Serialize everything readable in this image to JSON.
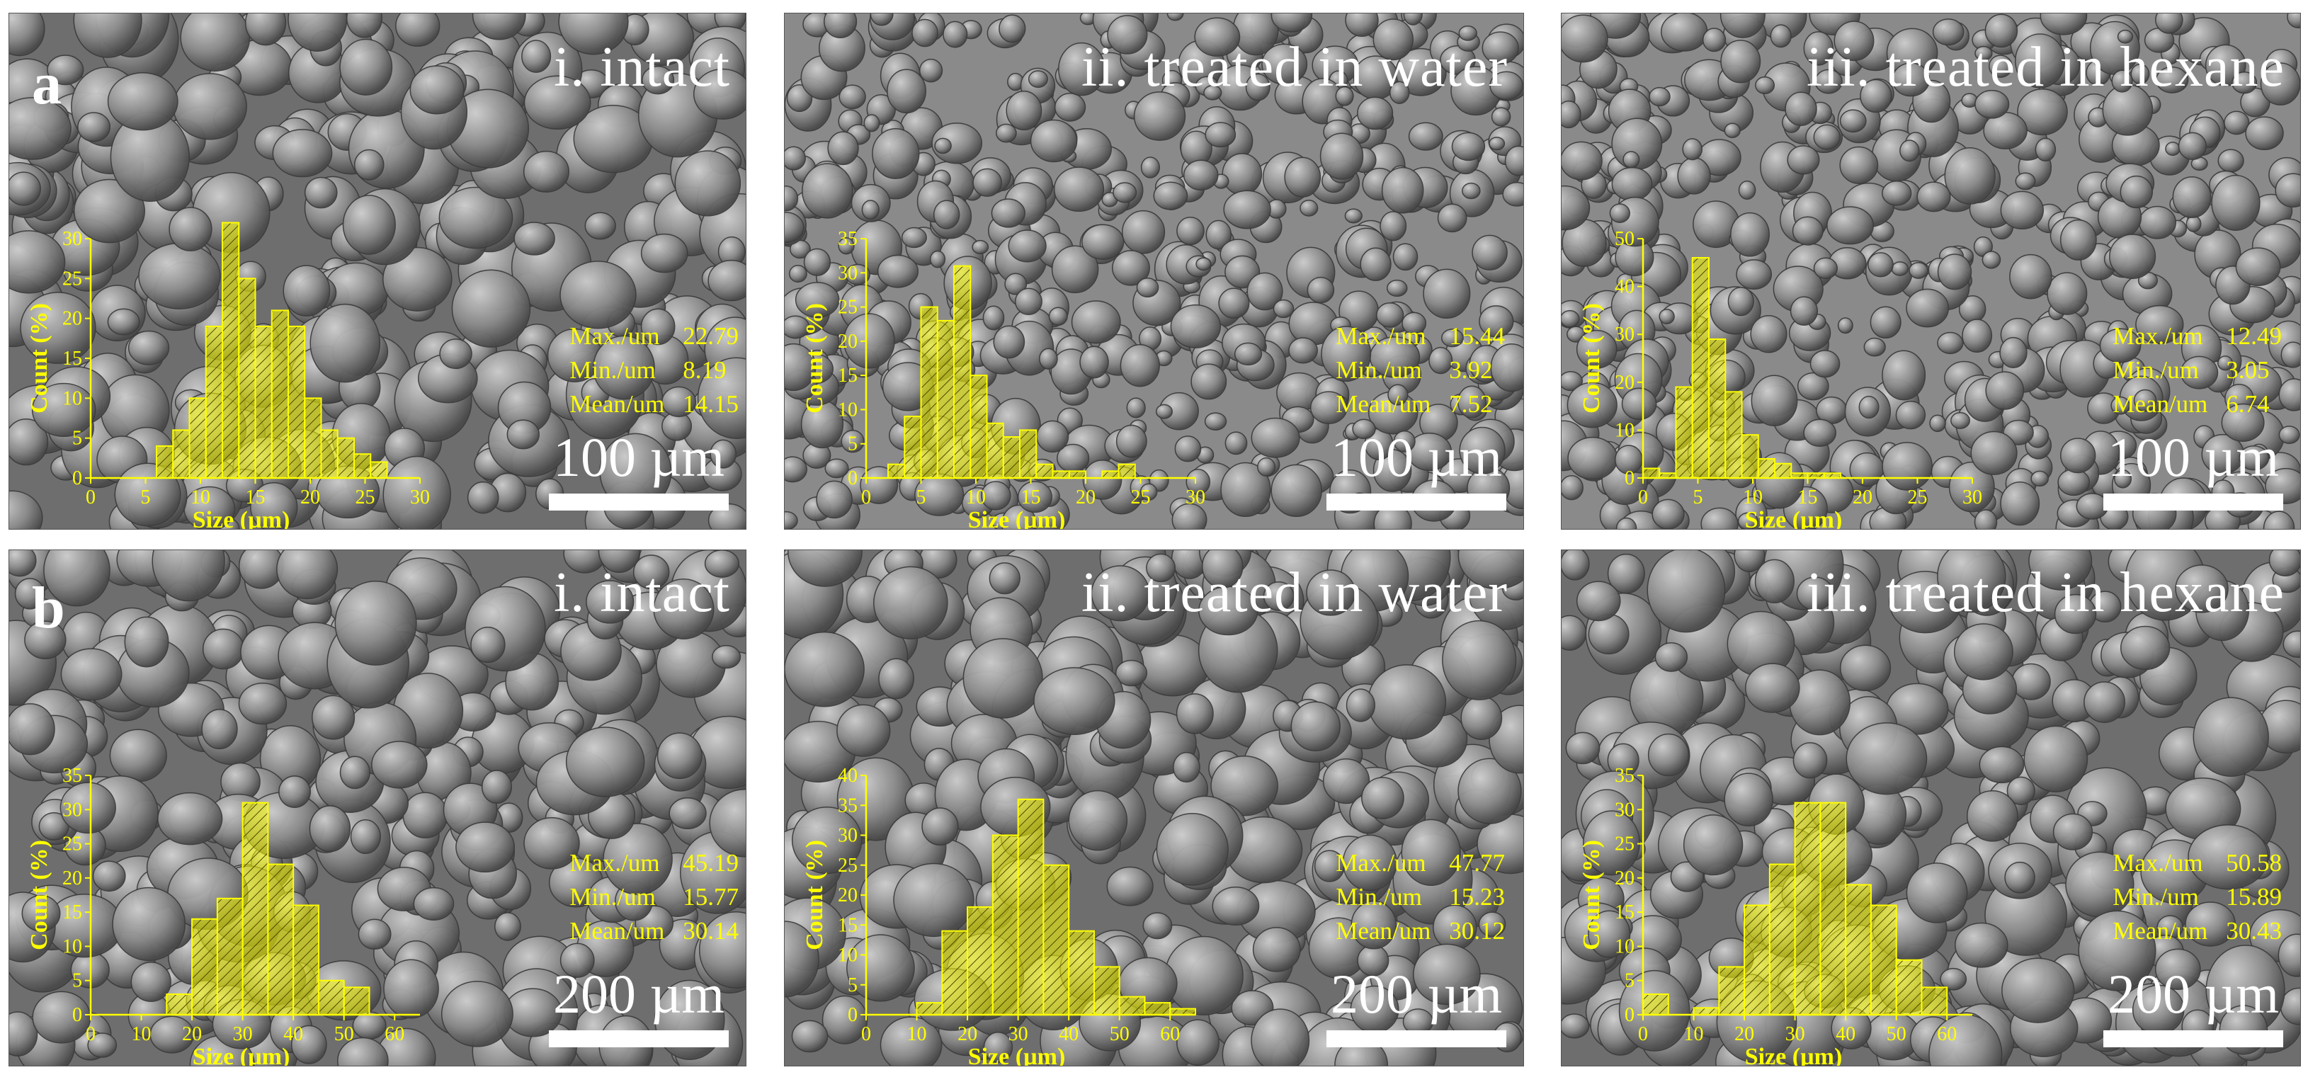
{
  "rows": [
    {
      "letter": "a"
    },
    {
      "letter": "b"
    }
  ],
  "panels": [
    {
      "id": "a1",
      "title": "i. intact",
      "stats": [
        {
          "k": "Max./um",
          "v": "22.79"
        },
        {
          "k": "Min./um",
          "v": "8.19"
        },
        {
          "k": "Mean/um",
          "v": "14.15"
        }
      ],
      "scale_label": "100 µm",
      "chart_data": {
        "type": "bar",
        "xlabel": "Size (µm)",
        "ylabel": "Count (%)",
        "xticks": [
          0,
          5,
          10,
          15,
          20,
          25,
          30
        ],
        "yticks": [
          0,
          5,
          10,
          15,
          20,
          25,
          30
        ],
        "xlim": [
          0,
          30
        ],
        "ylim": [
          0,
          30
        ],
        "bins": [
          [
            6,
            7.5,
            4
          ],
          [
            7.5,
            9,
            6
          ],
          [
            9,
            10.5,
            10
          ],
          [
            10.5,
            12,
            19
          ],
          [
            12,
            13.5,
            32
          ],
          [
            13.5,
            15,
            25
          ],
          [
            15,
            16.5,
            19
          ],
          [
            16.5,
            18,
            21
          ],
          [
            18,
            19.5,
            19
          ],
          [
            19.5,
            21,
            10
          ],
          [
            21,
            22.5,
            6
          ],
          [
            22.5,
            24,
            5
          ],
          [
            24,
            25.5,
            3
          ],
          [
            25.5,
            27,
            2
          ]
        ]
      }
    },
    {
      "id": "a2",
      "title": "ii. treated in water",
      "stats": [
        {
          "k": "Max./um",
          "v": "15.44"
        },
        {
          "k": "Min./um",
          "v": "3.92"
        },
        {
          "k": "Mean/um",
          "v": "7.52"
        }
      ],
      "scale_label": "100 µm",
      "chart_data": {
        "type": "bar",
        "xlabel": "Size (µm)",
        "ylabel": "Count (%)",
        "xticks": [
          0,
          5,
          10,
          15,
          20,
          25,
          30
        ],
        "yticks": [
          0,
          5,
          10,
          15,
          20,
          25,
          30,
          35
        ],
        "xlim": [
          0,
          30
        ],
        "ylim": [
          0,
          35
        ],
        "bins": [
          [
            2,
            3.5,
            2
          ],
          [
            3.5,
            5,
            9
          ],
          [
            5,
            6.5,
            25
          ],
          [
            6.5,
            8,
            23
          ],
          [
            8,
            9.5,
            31
          ],
          [
            9.5,
            11,
            15
          ],
          [
            11,
            12.5,
            8
          ],
          [
            12.5,
            14,
            6
          ],
          [
            14,
            15.5,
            7
          ],
          [
            15.5,
            17,
            2
          ],
          [
            17,
            18.5,
            1
          ],
          [
            18.5,
            20,
            1
          ],
          [
            20,
            21.5,
            0
          ],
          [
            21.5,
            23,
            1
          ],
          [
            23,
            24.5,
            2
          ]
        ]
      }
    },
    {
      "id": "a3",
      "title": "iii. treated in hexane",
      "stats": [
        {
          "k": "Max./um",
          "v": "12.49"
        },
        {
          "k": "Min./um",
          "v": "3.05"
        },
        {
          "k": "Mean/um",
          "v": "6.74"
        }
      ],
      "scale_label": "100 µm",
      "chart_data": {
        "type": "bar",
        "xlabel": "Size (µm)",
        "ylabel": "Count (%)",
        "xticks": [
          0,
          5,
          10,
          15,
          20,
          25,
          30
        ],
        "yticks": [
          0,
          10,
          20,
          30,
          40,
          50
        ],
        "xlim": [
          0,
          30
        ],
        "ylim": [
          0,
          50
        ],
        "bins": [
          [
            0,
            1.5,
            2
          ],
          [
            1.5,
            3,
            1
          ],
          [
            3,
            4.5,
            19
          ],
          [
            4.5,
            6,
            46
          ],
          [
            6,
            7.5,
            29
          ],
          [
            7.5,
            9,
            18
          ],
          [
            9,
            10.5,
            9
          ],
          [
            10.5,
            12,
            4
          ],
          [
            12,
            13.5,
            3
          ],
          [
            13.5,
            15,
            1
          ],
          [
            15,
            16.5,
            1
          ],
          [
            16.5,
            18,
            1
          ]
        ]
      }
    },
    {
      "id": "b1",
      "title": "i. intact",
      "stats": [
        {
          "k": "Max./um",
          "v": "45.19"
        },
        {
          "k": "Min./um",
          "v": "15.77"
        },
        {
          "k": "Mean/um",
          "v": "30.14"
        }
      ],
      "scale_label": "200 µm",
      "chart_data": {
        "type": "bar",
        "xlabel": "Size (µm)",
        "ylabel": "Count (%)",
        "xticks": [
          0,
          10,
          20,
          30,
          40,
          50,
          60
        ],
        "yticks": [
          0,
          5,
          10,
          15,
          20,
          25,
          30,
          35
        ],
        "xlim": [
          0,
          65
        ],
        "ylim": [
          0,
          35
        ],
        "bins": [
          [
            15,
            20,
            3
          ],
          [
            20,
            25,
            14
          ],
          [
            25,
            30,
            17
          ],
          [
            30,
            35,
            31
          ],
          [
            35,
            40,
            22
          ],
          [
            40,
            45,
            16
          ],
          [
            45,
            50,
            5
          ],
          [
            50,
            55,
            4
          ]
        ]
      }
    },
    {
      "id": "b2",
      "title": "ii. treated in water",
      "stats": [
        {
          "k": "Max./um",
          "v": "47.77"
        },
        {
          "k": "Min./um",
          "v": "15.23"
        },
        {
          "k": "Mean/um",
          "v": "30.12"
        }
      ],
      "scale_label": "200 µm",
      "chart_data": {
        "type": "bar",
        "xlabel": "Size (µm)",
        "ylabel": "Count (%)",
        "xticks": [
          0,
          10,
          20,
          30,
          40,
          50,
          60
        ],
        "yticks": [
          0,
          5,
          10,
          15,
          20,
          25,
          30,
          35,
          40
        ],
        "xlim": [
          0,
          65
        ],
        "ylim": [
          0,
          40
        ],
        "bins": [
          [
            10,
            15,
            2
          ],
          [
            15,
            20,
            14
          ],
          [
            20,
            25,
            18
          ],
          [
            25,
            30,
            30
          ],
          [
            30,
            35,
            36
          ],
          [
            35,
            40,
            25
          ],
          [
            40,
            45,
            14
          ],
          [
            45,
            50,
            8
          ],
          [
            50,
            55,
            3
          ],
          [
            55,
            60,
            2
          ],
          [
            60,
            65,
            1
          ]
        ]
      }
    },
    {
      "id": "b3",
      "title": "iii. treated in hexane",
      "stats": [
        {
          "k": "Max./um",
          "v": "50.58"
        },
        {
          "k": "Min./um",
          "v": "15.89"
        },
        {
          "k": "Mean/um",
          "v": "30.43"
        }
      ],
      "scale_label": "200 µm",
      "chart_data": {
        "type": "bar",
        "xlabel": "Size (µm)",
        "ylabel": "Count (%)",
        "xticks": [
          0,
          10,
          20,
          30,
          40,
          50,
          60
        ],
        "yticks": [
          0,
          5,
          10,
          15,
          20,
          25,
          30,
          35
        ],
        "xlim": [
          0,
          65
        ],
        "ylim": [
          0,
          35
        ],
        "bins": [
          [
            0,
            5,
            3
          ],
          [
            10,
            15,
            1
          ],
          [
            15,
            20,
            7
          ],
          [
            20,
            25,
            16
          ],
          [
            25,
            30,
            22
          ],
          [
            30,
            35,
            31
          ],
          [
            35,
            40,
            31
          ],
          [
            40,
            45,
            19
          ],
          [
            45,
            50,
            16
          ],
          [
            50,
            55,
            8
          ],
          [
            55,
            60,
            4
          ]
        ]
      }
    }
  ]
}
